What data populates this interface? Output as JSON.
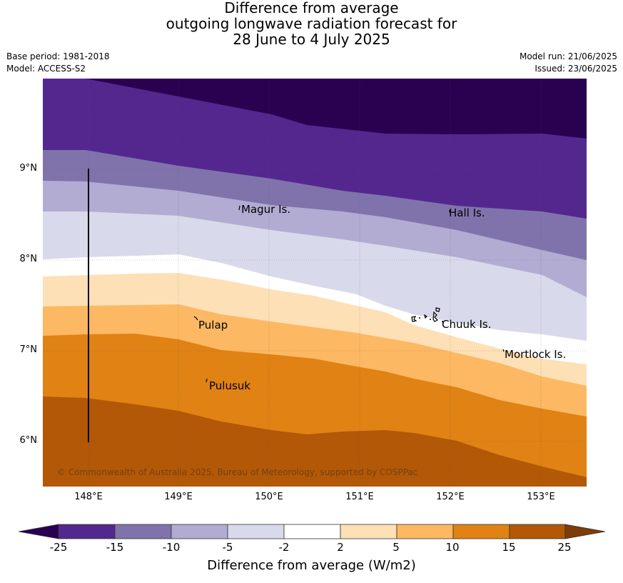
{
  "header": {
    "title_line1": "Difference from average",
    "title_line2": "outgoing longwave radiation forecast for",
    "title_line3": "28 June to 4 July 2025",
    "base_period": "Base period: 1981-2018",
    "model": "Model: ACCESS-S2",
    "model_run": "Model run: 21/06/2025",
    "issued": "Issued: 23/06/2025"
  },
  "map": {
    "lat_labels": [
      "9°N",
      "8°N",
      "7°N",
      "6°N"
    ],
    "lon_labels": [
      "148°E",
      "149°E",
      "150°E",
      "151°E",
      "152°E",
      "153°E"
    ],
    "places": {
      "magur": "Magur Is.",
      "hall": "Hall Is.",
      "pulap": "Pulap",
      "chuuk": "Chuuk Is.",
      "mortlock": "Mortlock Is.",
      "pulusuk": "Pulusuk"
    },
    "copyright": "© Commonwealth of Australia 2025, Bureau of Meteorology, supported by COSPPac"
  },
  "colorbar": {
    "ticks": [
      "-25",
      "-15",
      "-10",
      "-5",
      "-2",
      "2",
      "5",
      "10",
      "15",
      "25"
    ],
    "label": "Difference from average (W/m2)",
    "colors": {
      "lt_-25": "#2a0050",
      "-25_-15": "#54278f",
      "-15_-10": "#8073ac",
      "-10_-5": "#b2abd2",
      "-5_-2": "#d8daeb",
      "-2_2": "#ffffff",
      "2_5": "#fee0b6",
      "5_10": "#fdb863",
      "10_15": "#e08214",
      "15_25": "#b35806",
      "gt_25": "#7f3b08"
    }
  }
}
